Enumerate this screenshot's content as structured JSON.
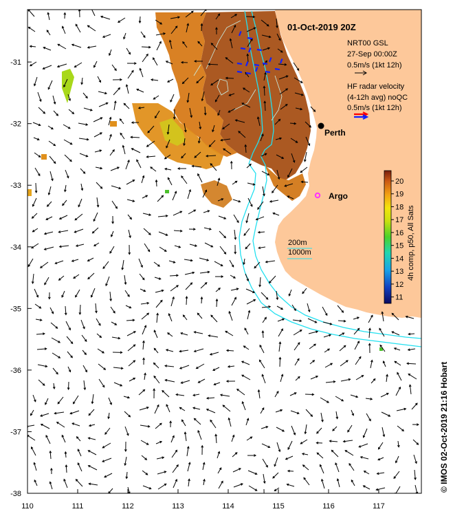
{
  "title": "01-Oct-2019 20Z",
  "legend": {
    "nrt_line1": "NRT00 GSL",
    "nrt_line2": "27-Sep 00:00Z",
    "nrt_line3": "0.5m/s (1kt 12h)",
    "hf_line1": "HF radar velocity",
    "hf_line2": "(4-12h avg) noQC",
    "hf_line3": "0.5m/s (1kt 12h)",
    "contour_200": "200m",
    "contour_1000": "1000m"
  },
  "places": {
    "perth": "Perth",
    "argo": "Argo"
  },
  "colorbar": {
    "label": "4h comp, p50, All Sats",
    "ticks": [
      "20",
      "19",
      "18",
      "17",
      "16",
      "15",
      "14",
      "13",
      "12",
      "11"
    ],
    "min": 10.5,
    "max": 20.8
  },
  "credit": "© IMOS 02-Oct-2019 21:16 Hobart",
  "axes": {
    "x_ticks": [
      "110",
      "111",
      "112",
      "113",
      "114",
      "115",
      "116",
      "117"
    ],
    "y_ticks": [
      "-31",
      "-32",
      "-33",
      "-34",
      "-35",
      "-36",
      "-37",
      "-38"
    ],
    "xlim": [
      110,
      117.85
    ],
    "ylim": [
      -38,
      -30.15
    ]
  },
  "colors": {
    "land": "#fdc89a",
    "contour": "#22e0f0",
    "sst_warm": "#b25a1c",
    "sst_mid": "#e39019",
    "sst_cool": "#c9d21a",
    "argo": "#ff33ff",
    "hf_red": "#ff0000",
    "hf_blue": "#1020ff"
  }
}
